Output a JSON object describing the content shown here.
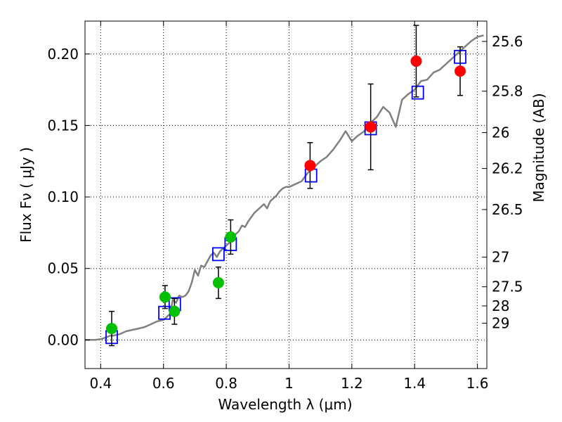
{
  "chart_data": {
    "type": "scatter",
    "title": "",
    "xlabel": "Wavelength  λ (μm)",
    "ylabel": "Flux  Fν  ( μJy )",
    "ylabel_right": "Magnitude (AB)",
    "xlim": [
      0.35,
      1.63
    ],
    "ylim": [
      -0.02,
      0.223
    ],
    "grid": true,
    "x_ticks": [
      0.4,
      0.6,
      0.8,
      1.0,
      1.2,
      1.4,
      1.6
    ],
    "x_tick_labels": [
      "0.4",
      "0.6",
      "0.8",
      "1",
      "1.2",
      "1.4",
      "1.6"
    ],
    "y_ticks": [
      0.0,
      0.05,
      0.1,
      0.15,
      0.2
    ],
    "y_tick_labels": [
      "0.00",
      "0.05",
      "0.10",
      "0.15",
      "0.20"
    ],
    "right_ticks": [
      {
        "flux": 0.0117,
        "label": "29"
      },
      {
        "flux": 0.0238,
        "label": "28"
      },
      {
        "flux": 0.0372,
        "label": "27.5"
      },
      {
        "flux": 0.0579,
        "label": "27"
      },
      {
        "flux": 0.0912,
        "label": "26.5"
      },
      {
        "flux": 0.1199,
        "label": "26.2"
      },
      {
        "flux": 0.145,
        "label": "26"
      },
      {
        "flux": 0.174,
        "label": "25.8"
      },
      {
        "flux": 0.2088,
        "label": "25.6"
      }
    ],
    "series": [
      {
        "marker": "line",
        "color": "#808080",
        "x": [
          0.35,
          0.38,
          0.4,
          0.42,
          0.43,
          0.44,
          0.46,
          0.48,
          0.5,
          0.52,
          0.54,
          0.56,
          0.58,
          0.6,
          0.61,
          0.62,
          0.63,
          0.64,
          0.65,
          0.66,
          0.67,
          0.68,
          0.69,
          0.7,
          0.71,
          0.72,
          0.73,
          0.74,
          0.75,
          0.76,
          0.77,
          0.78,
          0.79,
          0.8,
          0.81,
          0.82,
          0.83,
          0.84,
          0.85,
          0.86,
          0.87,
          0.88,
          0.89,
          0.9,
          0.91,
          0.92,
          0.93,
          0.94,
          0.95,
          0.96,
          0.97,
          0.98,
          0.99,
          1.0,
          1.02,
          1.04,
          1.06,
          1.08,
          1.1,
          1.12,
          1.14,
          1.16,
          1.18,
          1.2,
          1.22,
          1.24,
          1.26,
          1.28,
          1.3,
          1.32,
          1.34,
          1.36,
          1.38,
          1.4,
          1.42,
          1.44,
          1.46,
          1.48,
          1.5,
          1.52,
          1.54,
          1.56,
          1.58,
          1.6,
          1.62
        ],
        "y": [
          0.0,
          0.0,
          0.0005,
          0.002,
          0.003,
          0.003,
          0.004,
          0.006,
          0.007,
          0.008,
          0.009,
          0.011,
          0.013,
          0.014,
          0.016,
          0.018,
          0.028,
          0.026,
          0.031,
          0.03,
          0.031,
          0.034,
          0.04,
          0.049,
          0.045,
          0.052,
          0.051,
          0.055,
          0.059,
          0.061,
          0.058,
          0.062,
          0.064,
          0.066,
          0.068,
          0.071,
          0.074,
          0.076,
          0.08,
          0.079,
          0.083,
          0.086,
          0.089,
          0.091,
          0.093,
          0.095,
          0.092,
          0.097,
          0.099,
          0.101,
          0.104,
          0.106,
          0.107,
          0.107,
          0.109,
          0.111,
          0.117,
          0.121,
          0.125,
          0.128,
          0.133,
          0.139,
          0.146,
          0.139,
          0.143,
          0.146,
          0.152,
          0.156,
          0.163,
          0.159,
          0.149,
          0.168,
          0.172,
          0.175,
          0.181,
          0.182,
          0.187,
          0.189,
          0.193,
          0.197,
          0.201,
          0.205,
          0.209,
          0.212,
          0.213
        ]
      },
      {
        "marker": "square",
        "color": "#0000ff",
        "x": [
          0.435,
          0.603,
          0.636,
          0.775,
          0.814,
          1.07,
          1.26,
          1.41,
          1.545
        ],
        "y": [
          0.002,
          0.019,
          0.025,
          0.06,
          0.067,
          0.115,
          0.148,
          0.173,
          0.198
        ]
      },
      {
        "marker": "circle",
        "color": "#00c000",
        "x": [
          0.435,
          0.605,
          0.635,
          0.775,
          0.814
        ],
        "y": [
          0.008,
          0.03,
          0.02,
          0.04,
          0.072
        ],
        "yerr": [
          0.012,
          0.008,
          0.009,
          0.011,
          0.012
        ]
      },
      {
        "marker": "circle",
        "color": "#ff0000",
        "x": [
          1.067,
          1.26,
          1.405,
          1.545
        ],
        "y": [
          0.122,
          0.149,
          0.195,
          0.188
        ],
        "yerr": [
          0.016,
          0.03,
          0.025,
          0.017
        ]
      }
    ]
  }
}
